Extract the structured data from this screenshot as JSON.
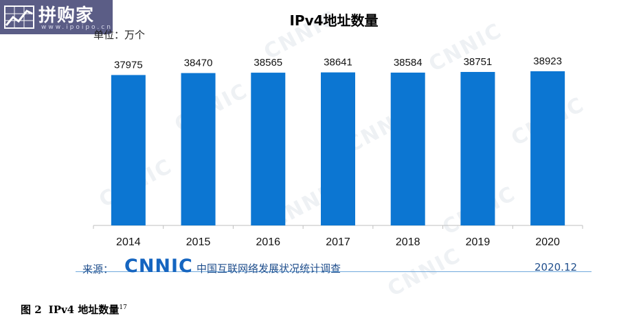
{
  "logo": {
    "text": "拼购家",
    "url": "www.ipoipo.cn",
    "icon": "chart-logo-icon"
  },
  "watermark_text": "CNNIC",
  "chart_data": {
    "type": "bar",
    "title": "IPv4地址数量",
    "unit": "单位：万个",
    "categories": [
      "2014",
      "2015",
      "2016",
      "2017",
      "2018",
      "2019",
      "2020"
    ],
    "values": [
      37975,
      38470,
      38565,
      38641,
      38584,
      38751,
      38923
    ],
    "ylim": [
      0,
      38923
    ],
    "bar_color": "#0c76d2",
    "grid": false,
    "xlabel": "",
    "ylabel": ""
  },
  "source": {
    "label": "来源：",
    "brand": "CNNIC",
    "survey": "中国互联网络发展状况统计调查",
    "date": "2020.12"
  },
  "caption": {
    "figure": "图 2",
    "text": "IPv4 地址数量",
    "footnote": "17"
  }
}
